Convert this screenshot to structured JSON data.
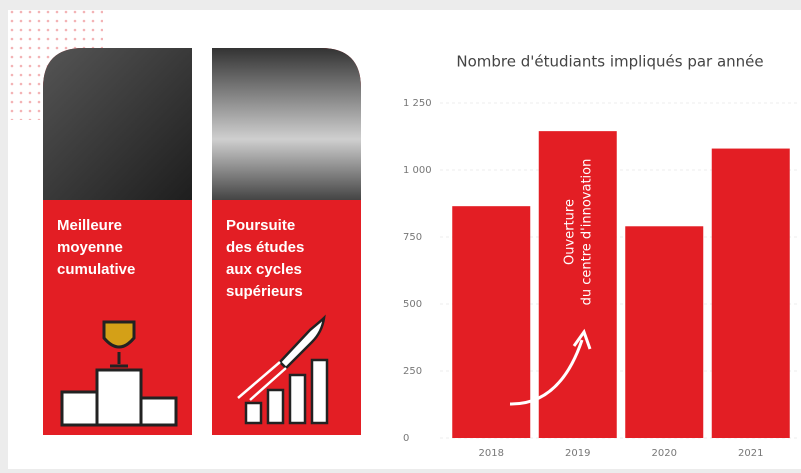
{
  "cards": [
    {
      "lines": [
        "Meilleure",
        "moyenne",
        "cumulative"
      ]
    },
    {
      "lines": [
        "Poursuite",
        "des études",
        "aux cycles",
        "supérieurs"
      ]
    }
  ],
  "chart_data": {
    "type": "bar",
    "title": "Nombre d'étudiants impliqués par année",
    "categories": [
      "2018",
      "2019",
      "2020",
      "2021"
    ],
    "values": [
      865,
      1145,
      790,
      1080
    ],
    "color": "#e31e24",
    "ylim": [
      0,
      1250
    ],
    "yticks": [
      0,
      250,
      500,
      750,
      {
        "value": 1000,
        "label": "1 000"
      },
      {
        "value": 1250,
        "label": "1 250"
      }
    ],
    "grid": true,
    "annotation": [
      "Ouverture",
      "du centre d'innovation"
    ]
  }
}
